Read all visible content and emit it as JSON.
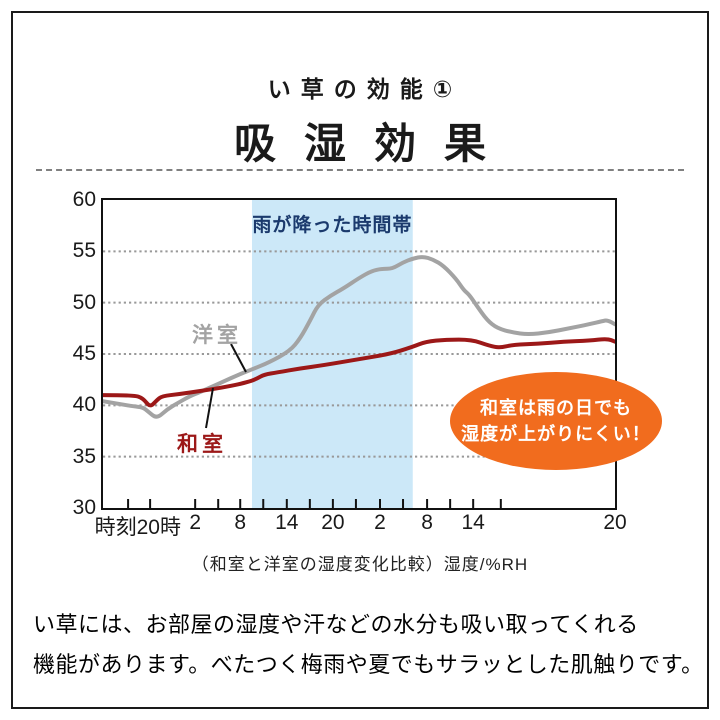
{
  "header": {
    "title_small": "い草の効能①",
    "title_large": "吸湿効果"
  },
  "colors": {
    "frame": "#1a1a1a",
    "rain_band": "#cce8f8",
    "rain_label": "#1b3a6d",
    "grid": "#999999",
    "axis": "#111111",
    "western_series": "#a3a3a3",
    "japanese_series": "#9c1818",
    "callout_bg": "#f16c1e",
    "callout_text": "#ffffff"
  },
  "chart": {
    "rain_label": "雨が降った時間帯",
    "western_label": "洋室",
    "japanese_label": "和室",
    "callout_line1": "和室は雨の日でも",
    "callout_line2": "湿度が上がりにくい！",
    "caption": "（和室と洋室の湿度変化比較）湿度/%RH"
  },
  "chart_data": {
    "type": "line",
    "title": "吸湿効果",
    "xlabel": "時刻",
    "ylabel": "湿度/%RH",
    "ylim": [
      30,
      60
    ],
    "y_tick_step": 5,
    "y_ticks": [
      60,
      55,
      50,
      45,
      40,
      35,
      30
    ],
    "grid": "dotted-horizontal",
    "x_tick_labels": [
      {
        "label": "時刻20時",
        "pos": 0.068
      },
      {
        "label": "2",
        "pos": 0.18
      },
      {
        "label": "8",
        "pos": 0.268
      },
      {
        "label": "14",
        "pos": 0.359
      },
      {
        "label": "20",
        "pos": 0.449
      },
      {
        "label": "2",
        "pos": 0.541
      },
      {
        "label": "8",
        "pos": 0.633
      },
      {
        "label": "14",
        "pos": 0.723
      },
      {
        "label": "20",
        "pos": 1.0
      }
    ],
    "minor_tick_positions": [
      0.049,
      0.092,
      0.18,
      0.225,
      0.268,
      0.313,
      0.359,
      0.404,
      0.449,
      0.494,
      0.541,
      0.586,
      0.633,
      0.678,
      0.723,
      0.777
    ],
    "rain_band": {
      "label": "雨が降った時間帯",
      "start_frac": 0.291,
      "end_frac": 0.605
    },
    "series": [
      {
        "name": "洋室",
        "color": "#a3a3a3",
        "points": [
          [
            0.0,
            40.4
          ],
          [
            0.035,
            40.1
          ],
          [
            0.06,
            39.9
          ],
          [
            0.078,
            39.8
          ],
          [
            0.088,
            39.4
          ],
          [
            0.105,
            38.7
          ],
          [
            0.125,
            39.6
          ],
          [
            0.145,
            40.2
          ],
          [
            0.17,
            40.9
          ],
          [
            0.19,
            41.3
          ],
          [
            0.23,
            42.2
          ],
          [
            0.27,
            43.1
          ],
          [
            0.291,
            43.5
          ],
          [
            0.325,
            44.2
          ],
          [
            0.365,
            45.3
          ],
          [
            0.385,
            46.5
          ],
          [
            0.405,
            48.3
          ],
          [
            0.42,
            49.8
          ],
          [
            0.445,
            50.7
          ],
          [
            0.47,
            51.4
          ],
          [
            0.5,
            52.4
          ],
          [
            0.525,
            53.1
          ],
          [
            0.545,
            53.3
          ],
          [
            0.565,
            53.3
          ],
          [
            0.585,
            53.9
          ],
          [
            0.605,
            54.3
          ],
          [
            0.625,
            54.5
          ],
          [
            0.645,
            54.2
          ],
          [
            0.665,
            53.6
          ],
          [
            0.69,
            52.3
          ],
          [
            0.705,
            51.2
          ],
          [
            0.715,
            50.8
          ],
          [
            0.73,
            49.7
          ],
          [
            0.75,
            48.3
          ],
          [
            0.77,
            47.5
          ],
          [
            0.8,
            47.1
          ],
          [
            0.83,
            46.9
          ],
          [
            0.87,
            47.1
          ],
          [
            0.91,
            47.5
          ],
          [
            0.95,
            47.9
          ],
          [
            0.975,
            48.2
          ],
          [
            0.985,
            48.3
          ],
          [
            1.0,
            47.9
          ]
        ]
      },
      {
        "name": "和室",
        "color": "#9c1818",
        "points": [
          [
            0.0,
            41.0
          ],
          [
            0.06,
            41.0
          ],
          [
            0.078,
            40.7
          ],
          [
            0.092,
            39.8
          ],
          [
            0.105,
            40.5
          ],
          [
            0.115,
            40.9
          ],
          [
            0.15,
            41.1
          ],
          [
            0.19,
            41.4
          ],
          [
            0.23,
            41.7
          ],
          [
            0.27,
            42.1
          ],
          [
            0.291,
            42.4
          ],
          [
            0.3,
            42.6
          ],
          [
            0.315,
            43.0
          ],
          [
            0.34,
            43.2
          ],
          [
            0.385,
            43.6
          ],
          [
            0.43,
            43.9
          ],
          [
            0.5,
            44.5
          ],
          [
            0.56,
            45.0
          ],
          [
            0.605,
            45.7
          ],
          [
            0.63,
            46.2
          ],
          [
            0.67,
            46.4
          ],
          [
            0.72,
            46.4
          ],
          [
            0.755,
            45.8
          ],
          [
            0.775,
            45.6
          ],
          [
            0.8,
            45.9
          ],
          [
            0.85,
            46.0
          ],
          [
            0.9,
            46.2
          ],
          [
            0.95,
            46.3
          ],
          [
            0.985,
            46.5
          ],
          [
            1.0,
            46.2
          ]
        ]
      }
    ]
  },
  "footer": {
    "line1": "い草には、お部屋の湿度や汗などの水分も吸い取ってくれる",
    "line2": "機能があります。べたつく梅雨や夏でもサラッとした肌触りです。"
  }
}
